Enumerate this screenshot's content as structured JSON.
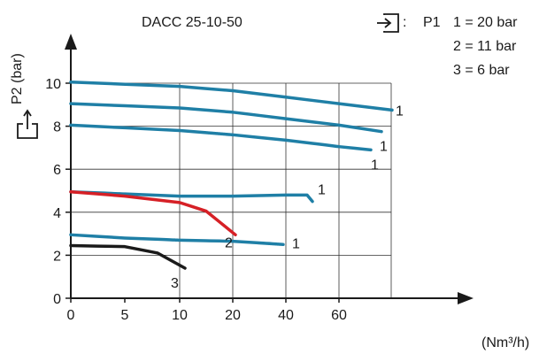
{
  "chart_data": {
    "type": "line",
    "title": "DACC 25-10-50",
    "ylabel": "P2 (bar)",
    "xlabel_unit": "(Nm³/h)",
    "x_ticks": [
      "0",
      "5",
      "10",
      "20",
      "40",
      "60"
    ],
    "x_tick_values": [
      0,
      5,
      10,
      20,
      40,
      60
    ],
    "y_ticks": [
      "0",
      "2",
      "4",
      "6",
      "8",
      "10"
    ],
    "ylim": [
      0,
      10.8
    ],
    "grid": true,
    "legend": {
      "inlet_label": "P1",
      "separator": ":",
      "entries": [
        "1 = 20 bar",
        "2 = 11 bar",
        "3 = 6 bar"
      ]
    },
    "series": [
      {
        "name": "1",
        "color": "#1f7fa6",
        "end_label": "1",
        "x": [
          0,
          10,
          20,
          40,
          60,
          70
        ],
        "y": [
          10.05,
          9.85,
          9.65,
          9.35,
          9.05,
          8.75
        ]
      },
      {
        "name": "1",
        "color": "#1f7fa6",
        "end_label": "1",
        "x": [
          0,
          10,
          20,
          40,
          60,
          68
        ],
        "y": [
          9.05,
          8.85,
          8.65,
          8.35,
          8.05,
          7.75
        ]
      },
      {
        "name": "1",
        "color": "#1f7fa6",
        "end_label": "1",
        "x": [
          0,
          10,
          20,
          40,
          60,
          66
        ],
        "y": [
          8.05,
          7.8,
          7.6,
          7.35,
          7.05,
          6.9
        ]
      },
      {
        "name": "1",
        "color": "#1f7fa6",
        "end_label": "1",
        "x": [
          0,
          5,
          10,
          20,
          40,
          48,
          50
        ],
        "y": [
          4.95,
          4.85,
          4.75,
          4.75,
          4.8,
          4.8,
          4.5
        ]
      },
      {
        "name": "2",
        "color": "#d62026",
        "end_label": "2",
        "x": [
          0,
          5,
          10,
          15,
          21
        ],
        "y": [
          4.95,
          4.75,
          4.45,
          4.05,
          2.95
        ]
      },
      {
        "name": "1",
        "color": "#1f7fa6",
        "end_label": "1",
        "x": [
          0,
          5,
          10,
          20,
          39
        ],
        "y": [
          2.95,
          2.8,
          2.7,
          2.65,
          2.5
        ]
      },
      {
        "name": "3",
        "color": "#1a1a1a",
        "end_label": "3",
        "x": [
          0,
          5,
          8,
          11
        ],
        "y": [
          2.45,
          2.4,
          2.1,
          1.4
        ]
      }
    ]
  }
}
